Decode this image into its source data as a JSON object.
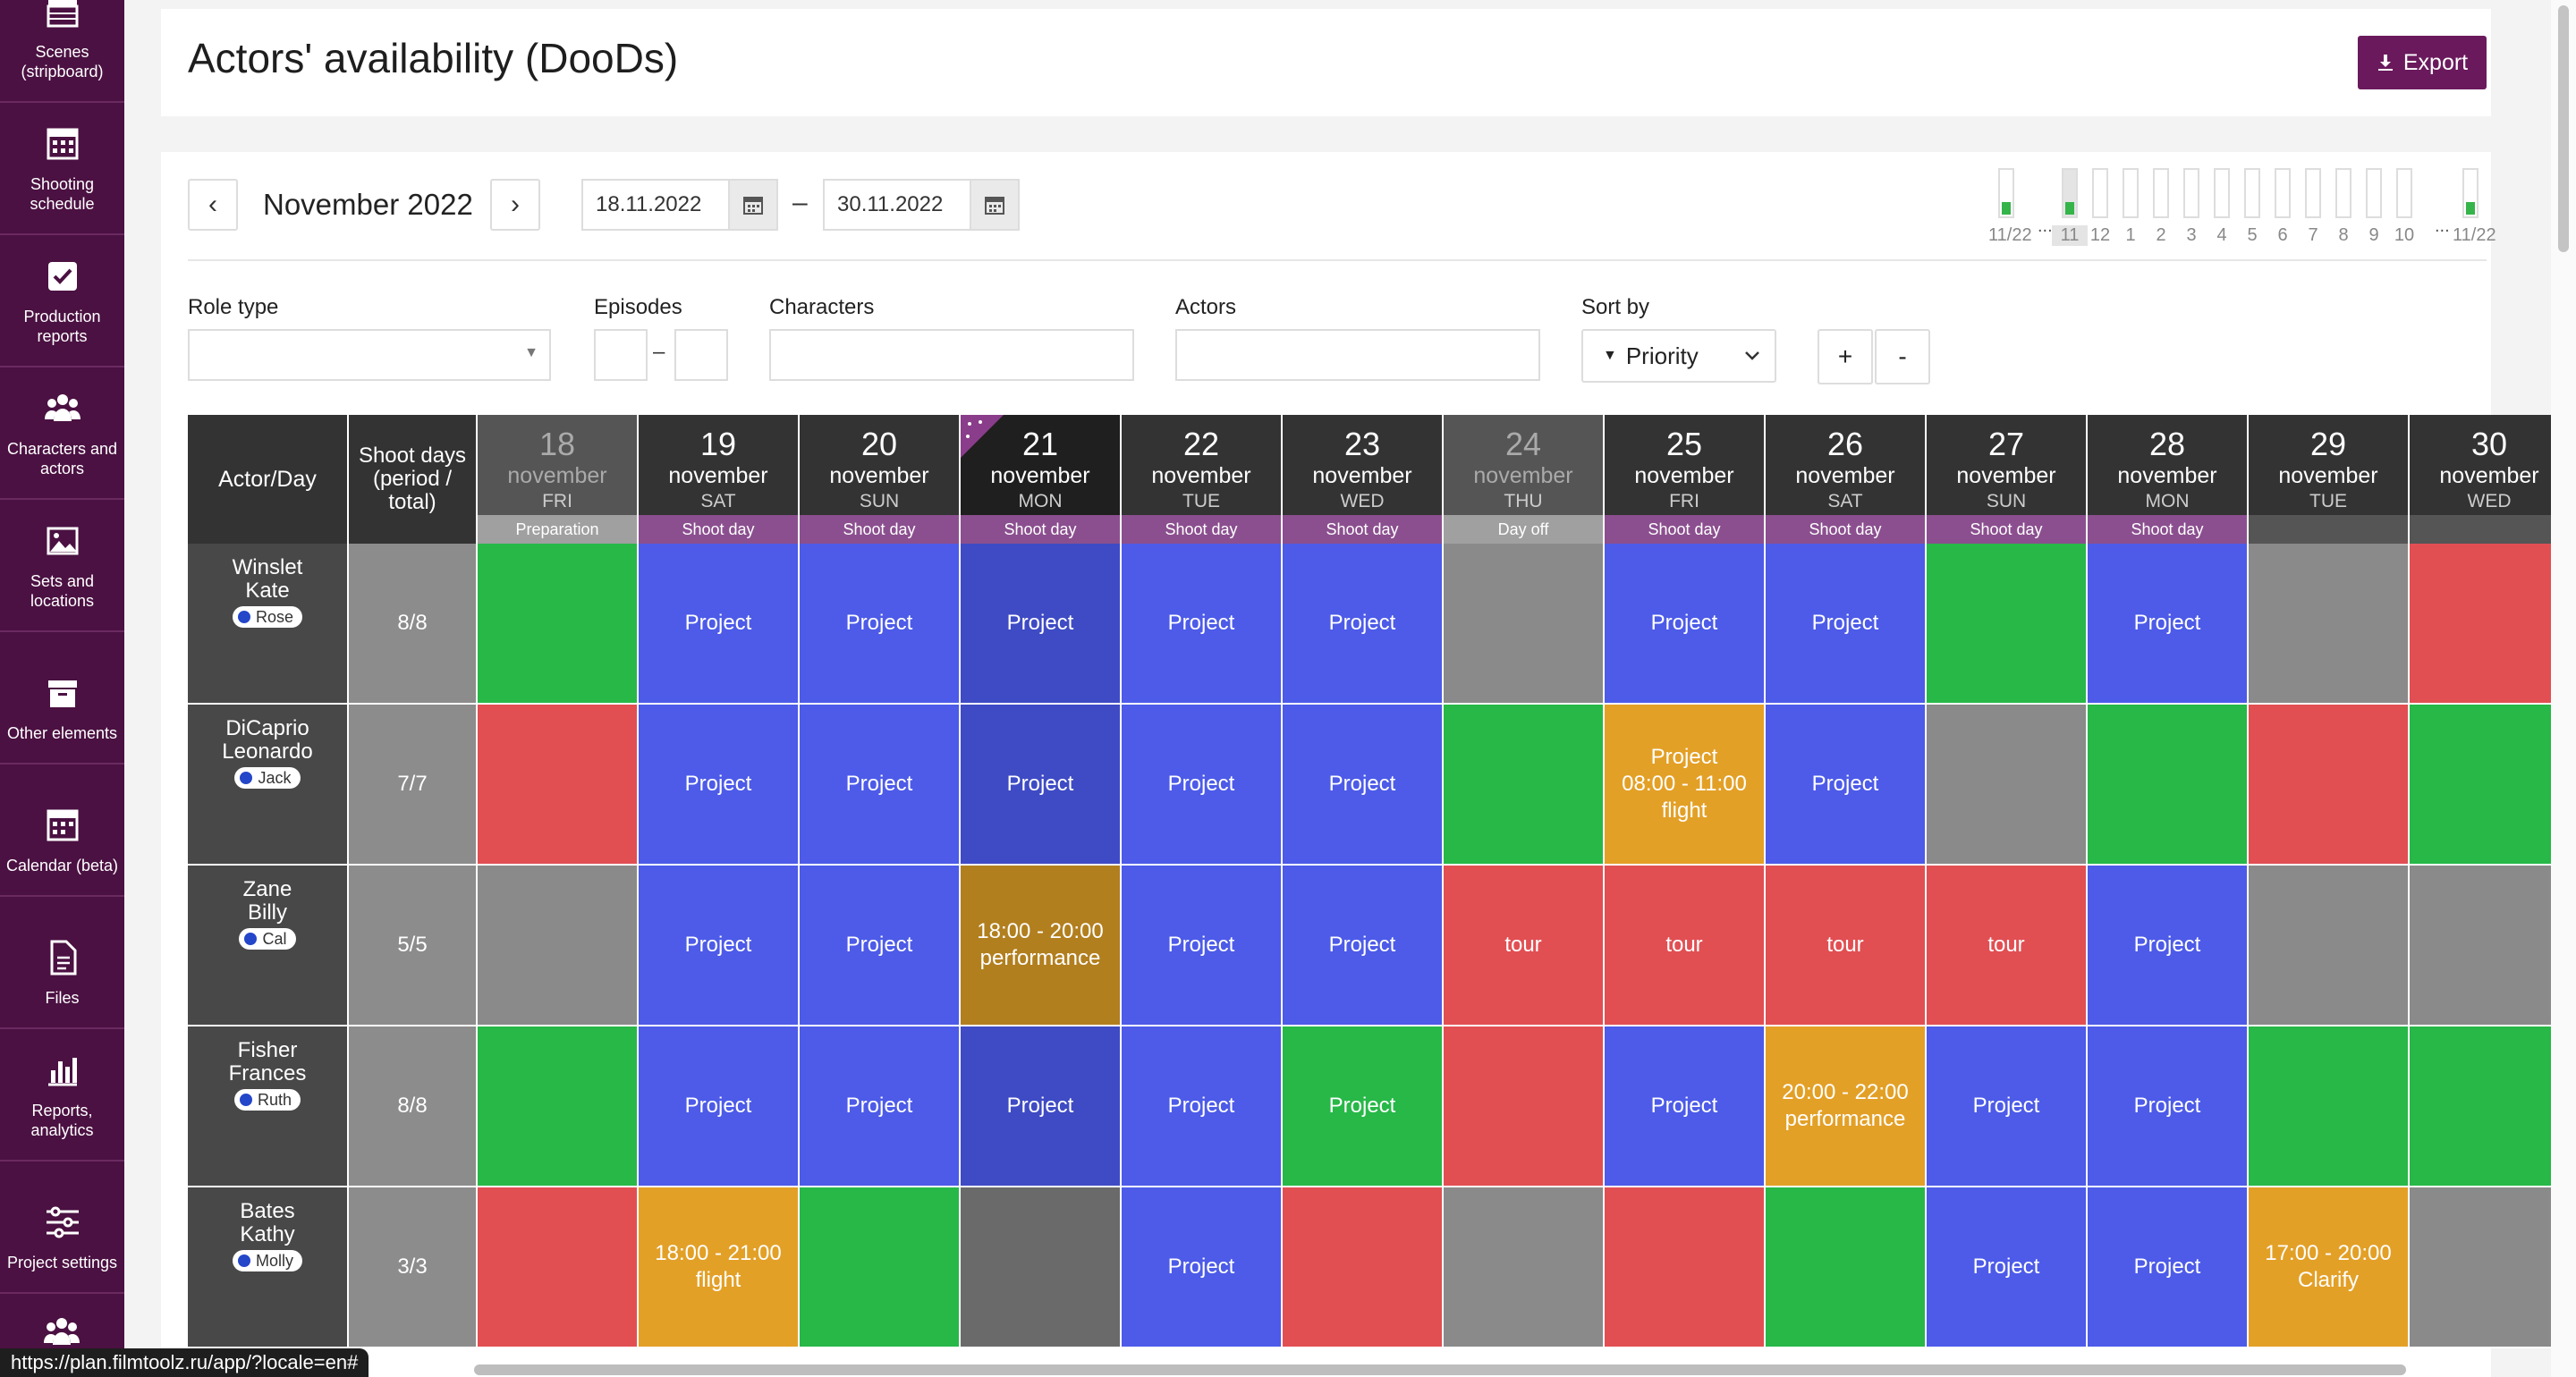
{
  "sidebar": {
    "items": [
      {
        "label": "Scenes (stripboard)",
        "icon": "clapperboard-icon"
      },
      {
        "label": "Shooting schedule",
        "icon": "calendar-grid-icon"
      },
      {
        "label": "Production reports",
        "icon": "checkbox-icon"
      },
      {
        "label": "Characters and actors",
        "icon": "people-icon"
      },
      {
        "label": "Sets and locations",
        "icon": "image-icon"
      },
      {
        "label": "Other elements",
        "icon": "box-icon"
      },
      {
        "label": "Calendar (beta)",
        "icon": "calendar-icon"
      },
      {
        "label": "Files",
        "icon": "file-icon"
      },
      {
        "label": "Reports, analytics",
        "icon": "bar-chart-icon"
      },
      {
        "label": "Project settings",
        "icon": "sliders-icon"
      }
    ]
  },
  "header": {
    "title": "Actors' availability (DooDs)",
    "export_label": "Export"
  },
  "period": {
    "prev": "‹",
    "next": "›",
    "month": "November 2022",
    "date_from": "18.11.2022",
    "date_to": "30.11.2022",
    "dash": "–"
  },
  "timeline": {
    "labels": [
      "11/22",
      "11",
      "12",
      "1",
      "2",
      "3",
      "4",
      "5",
      "6",
      "7",
      "8",
      "9",
      "10",
      "11/22"
    ],
    "ellipsis": "..."
  },
  "filters": {
    "role_type": "Role type",
    "episodes": "Episodes",
    "episodes_dash": "–",
    "characters": "Characters",
    "actors": "Actors",
    "sort_by": "Sort by",
    "sort_value": "Priority",
    "plus": "+",
    "minus": "-"
  },
  "table": {
    "col_actor": "Actor/Day",
    "col_shoot": "Shoot days (period / total)",
    "days": [
      {
        "num": "18",
        "month": "november",
        "dow": "FRI",
        "type": "Preparation"
      },
      {
        "num": "19",
        "month": "november",
        "dow": "SAT",
        "type": "Shoot day"
      },
      {
        "num": "20",
        "month": "november",
        "dow": "SUN",
        "type": "Shoot day"
      },
      {
        "num": "21",
        "month": "november",
        "dow": "MON",
        "type": "Shoot day"
      },
      {
        "num": "22",
        "month": "november",
        "dow": "TUE",
        "type": "Shoot day"
      },
      {
        "num": "23",
        "month": "november",
        "dow": "WED",
        "type": "Shoot day"
      },
      {
        "num": "24",
        "month": "november",
        "dow": "THU",
        "type": "Day off"
      },
      {
        "num": "25",
        "month": "november",
        "dow": "FRI",
        "type": "Shoot day"
      },
      {
        "num": "26",
        "month": "november",
        "dow": "SAT",
        "type": "Shoot day"
      },
      {
        "num": "27",
        "month": "november",
        "dow": "SUN",
        "type": "Shoot day"
      },
      {
        "num": "28",
        "month": "november",
        "dow": "MON",
        "type": "Shoot day"
      },
      {
        "num": "29",
        "month": "november",
        "dow": "TUE",
        "type": ""
      },
      {
        "num": "30",
        "month": "november",
        "dow": "WED",
        "type": ""
      }
    ],
    "rows": [
      {
        "last": "Winslet",
        "first": "Kate",
        "role": "Rose",
        "shoot": "8/8",
        "cells": [
          [
            "green",
            ""
          ],
          [
            "blue",
            "Project"
          ],
          [
            "blue",
            "Project"
          ],
          [
            "blue",
            "Project"
          ],
          [
            "blue",
            "Project"
          ],
          [
            "blue",
            "Project"
          ],
          [
            "gray",
            ""
          ],
          [
            "blue",
            "Project"
          ],
          [
            "blue",
            "Project"
          ],
          [
            "green",
            ""
          ],
          [
            "blue",
            "Project"
          ],
          [
            "gray",
            ""
          ],
          [
            "red",
            ""
          ]
        ]
      },
      {
        "last": "DiCaprio",
        "first": "Leonardo",
        "role": "Jack",
        "shoot": "7/7",
        "cells": [
          [
            "red",
            ""
          ],
          [
            "blue",
            "Project"
          ],
          [
            "blue",
            "Project"
          ],
          [
            "blue",
            "Project"
          ],
          [
            "blue",
            "Project"
          ],
          [
            "blue",
            "Project"
          ],
          [
            "green",
            ""
          ],
          [
            "orange",
            "Project\n08:00 - 11:00\nflight"
          ],
          [
            "blue",
            "Project"
          ],
          [
            "gray",
            ""
          ],
          [
            "green",
            ""
          ],
          [
            "red",
            ""
          ],
          [
            "green",
            ""
          ]
        ]
      },
      {
        "last": "Zane",
        "first": "Billy",
        "role": "Cal",
        "shoot": "5/5",
        "cells": [
          [
            "gray",
            ""
          ],
          [
            "blue",
            "Project"
          ],
          [
            "blue",
            "Project"
          ],
          [
            "orange",
            "18:00 - 20:00\nperformance"
          ],
          [
            "blue",
            "Project"
          ],
          [
            "blue",
            "Project"
          ],
          [
            "red",
            "tour"
          ],
          [
            "red",
            "tour"
          ],
          [
            "red",
            "tour"
          ],
          [
            "red",
            "tour"
          ],
          [
            "blue",
            "Project"
          ],
          [
            "gray",
            ""
          ],
          [
            "gray",
            ""
          ]
        ]
      },
      {
        "last": "Fisher",
        "first": "Frances",
        "role": "Ruth",
        "shoot": "8/8",
        "cells": [
          [
            "green",
            ""
          ],
          [
            "blue",
            "Project"
          ],
          [
            "blue",
            "Project"
          ],
          [
            "blue",
            "Project"
          ],
          [
            "blue",
            "Project"
          ],
          [
            "green",
            "Project"
          ],
          [
            "red",
            ""
          ],
          [
            "blue",
            "Project"
          ],
          [
            "orange",
            "20:00 - 22:00\nperformance"
          ],
          [
            "blue",
            "Project"
          ],
          [
            "blue",
            "Project"
          ],
          [
            "green",
            ""
          ],
          [
            "green",
            ""
          ]
        ]
      },
      {
        "last": "Bates",
        "first": "Kathy",
        "role": "Molly",
        "shoot": "3/3",
        "cells": [
          [
            "red",
            ""
          ],
          [
            "orange",
            "18:00 - 21:00\nflight"
          ],
          [
            "green",
            ""
          ],
          [
            "gray",
            ""
          ],
          [
            "blue",
            "Project"
          ],
          [
            "red",
            ""
          ],
          [
            "gray",
            ""
          ],
          [
            "red",
            ""
          ],
          [
            "green",
            ""
          ],
          [
            "blue",
            "Project"
          ],
          [
            "blue",
            "Project"
          ],
          [
            "orange",
            "17:00 - 20:00\nClarify"
          ],
          [
            "gray",
            ""
          ]
        ]
      }
    ]
  },
  "status_url": "https://plan.filmtoolz.ru/app/?locale=en#",
  "colors": {
    "sidebar": "#4b1142",
    "accent": "#6a1a5c",
    "blue": "#4d5be8",
    "green": "#27b848",
    "red": "#e14f53",
    "gray": "#8a8a8a",
    "orange": "#e3a027"
  }
}
